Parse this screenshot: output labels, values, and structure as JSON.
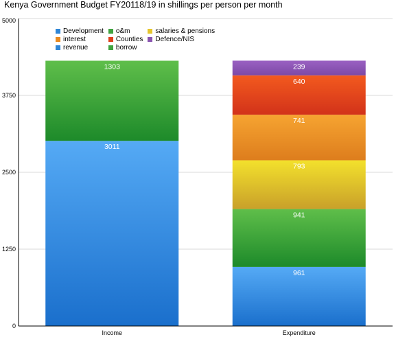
{
  "chart_data": {
    "type": "bar",
    "stacked": true,
    "title": "Kenya Government Budget FY20118/19 in shillings per person per month",
    "xlabel": "",
    "ylabel": "",
    "ylim": [
      0,
      5000
    ],
    "yticks": [
      "0",
      "1250",
      "2500",
      "3750",
      "5000"
    ],
    "categories": [
      "Income",
      "Expenditure"
    ],
    "grid": true,
    "legend_position": "top-left",
    "legend": [
      {
        "label": "Development",
        "color": "#2f86d6"
      },
      {
        "label": "o&m",
        "color": "#3fa33f"
      },
      {
        "label": "salaries & pensions",
        "color": "#e6c62e"
      },
      {
        "label": "interest",
        "color": "#e98a1f"
      },
      {
        "label": "Counties",
        "color": "#e0401c"
      },
      {
        "label": "Defence/NIS",
        "color": "#8a55b0"
      },
      {
        "label": "revenue",
        "color": "#2f86d6"
      },
      {
        "label": "borrow",
        "color": "#3fa33f"
      }
    ],
    "series": [
      {
        "name": "revenue",
        "values": [
          3011,
          0
        ],
        "color_top": "#55aaf5",
        "color_bottom": "#1a6fcc"
      },
      {
        "name": "borrow",
        "values": [
          1303,
          0
        ],
        "color_top": "#5fbe4a",
        "color_bottom": "#1d8a2a"
      },
      {
        "name": "Development",
        "values": [
          0,
          961
        ],
        "color_top": "#55aaf5",
        "color_bottom": "#1a6fcc"
      },
      {
        "name": "o&m",
        "values": [
          0,
          941
        ],
        "color_top": "#5fbe4a",
        "color_bottom": "#1d8a2a"
      },
      {
        "name": "salaries & pensions",
        "values": [
          0,
          793
        ],
        "color_top": "#f3e12c",
        "color_bottom": "#c9a02a"
      },
      {
        "name": "interest",
        "values": [
          0,
          741
        ],
        "color_top": "#f6a431",
        "color_bottom": "#dd7d1d"
      },
      {
        "name": "Counties",
        "values": [
          0,
          640
        ],
        "color_top": "#f35a1e",
        "color_bottom": "#d2321a"
      },
      {
        "name": "Defence/NIS",
        "values": [
          0,
          239
        ],
        "color_top": "#9a60c2",
        "color_bottom": "#7d4aa6"
      }
    ]
  }
}
